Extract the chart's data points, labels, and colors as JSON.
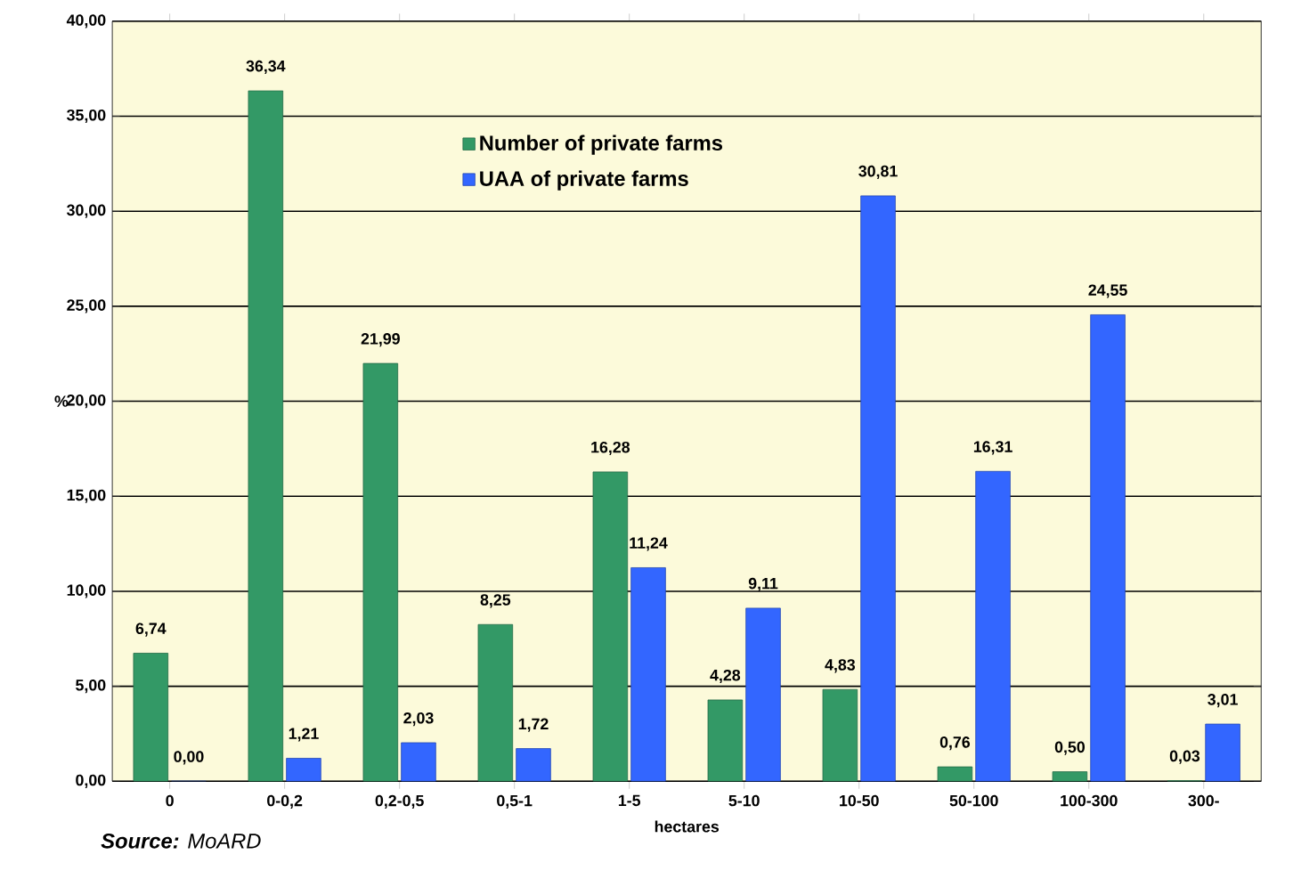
{
  "chart_data": {
    "type": "bar",
    "xlabel": "hectares",
    "ylabel": "%",
    "categories": [
      "0",
      "0-0,2",
      "0,2-0,5",
      "0,5-1",
      "1-5",
      "5-10",
      "10-50",
      "50-100",
      "100-300",
      "300-"
    ],
    "series": [
      {
        "name": "Number of private farms",
        "color": "#339966",
        "values": [
          6.74,
          36.34,
          21.99,
          8.25,
          16.28,
          4.28,
          4.83,
          0.76,
          0.5,
          0.03
        ],
        "value_labels": [
          "6,74",
          "36,34",
          "21,99",
          "8,25",
          "16,28",
          "4,28",
          "4,83",
          "0,76",
          "0,50",
          "0,03"
        ]
      },
      {
        "name": "UAA of private farms",
        "color": "#3366ff",
        "values": [
          0.0,
          1.21,
          2.03,
          1.72,
          11.24,
          9.11,
          30.81,
          16.31,
          24.55,
          3.01
        ],
        "value_labels": [
          "0,00",
          "1,21",
          "2,03",
          "1,72",
          "11,24",
          "9,11",
          "30,81",
          "16,31",
          "24,55",
          "3,01"
        ]
      }
    ],
    "ylim": [
      0,
      40
    ],
    "yticks": [
      {
        "value": 0,
        "label": "0,00"
      },
      {
        "value": 5,
        "label": "5,00"
      },
      {
        "value": 10,
        "label": "10,00"
      },
      {
        "value": 15,
        "label": "15,00"
      },
      {
        "value": 20,
        "label": "20,00"
      },
      {
        "value": 25,
        "label": "25,00"
      },
      {
        "value": 30,
        "label": "30,00"
      },
      {
        "value": 35,
        "label": "35,00"
      },
      {
        "value": 40,
        "label": "40,00"
      }
    ],
    "grid": "y",
    "legend": "top",
    "annotations": [
      "**Source:** MoARD"
    ]
  }
}
